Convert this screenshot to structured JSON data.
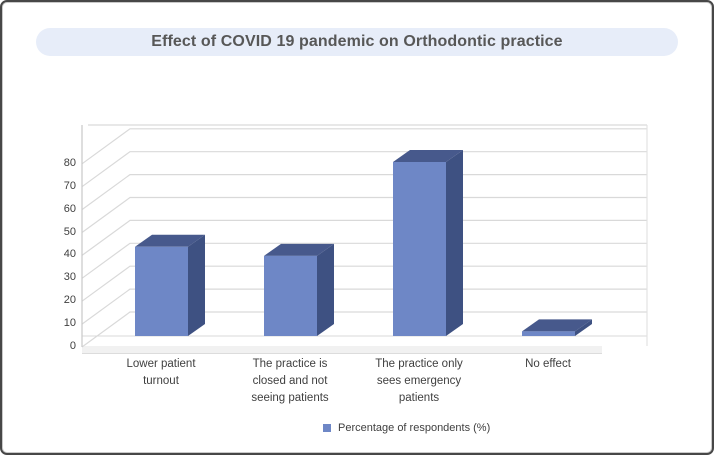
{
  "title": "Effect of COVID 19 pandemic on Orthodontic practice",
  "chart_data": {
    "type": "bar",
    "style": "3d-clustered-column",
    "title": "Effect of COVID 19 pandemic on Orthodontic practice",
    "categories": [
      "Lower patient turnout",
      "The practice is closed and not seeing patients",
      "The practice only sees emergency patients",
      "No effect"
    ],
    "series": [
      {
        "name": "Percentage of respondents (%)",
        "values": [
          39,
          35,
          76,
          2
        ]
      }
    ],
    "xlabel": "",
    "ylabel": "",
    "ylim": [
      0,
      80
    ],
    "ytick_step": 10,
    "yticks": [
      "0",
      "10",
      "20",
      "30",
      "40",
      "50",
      "60",
      "70",
      "80"
    ],
    "grid": true,
    "legend_position": "bottom"
  },
  "legend": {
    "label": "Percentage of respondents (%)"
  },
  "colors": {
    "bar_front": "#6e87c6",
    "bar_top": "#47598c",
    "bar_side": "#3e5182",
    "gridline": "#d9d9d9",
    "axis_line": "#c9c9c9",
    "floor": "#f1f1f1",
    "floor_edge": "#dcdcdc",
    "title_bg": "#e7edf9",
    "title_text": "#575757",
    "axis_text": "#3f3f3f"
  }
}
